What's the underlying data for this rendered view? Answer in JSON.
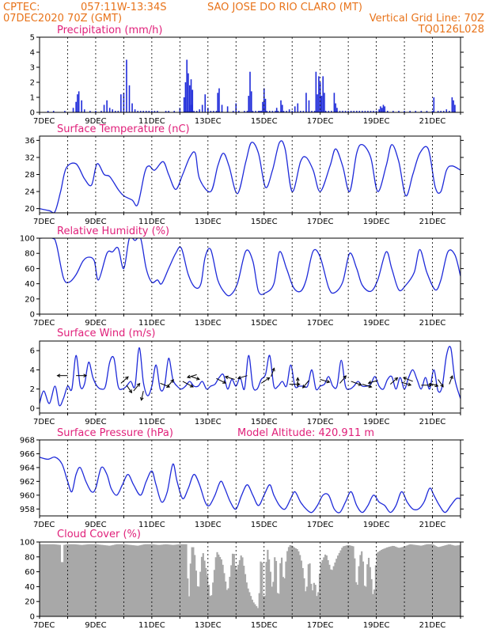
{
  "header": {
    "line1_left": "CPTEC:",
    "line1_coords": "057:11W-13:34S",
    "line1_station": "SAO JOSE DO RIO CLARO (MT)",
    "line2_left": "07DEC2020 70Z (GMT)",
    "line2_right": "Vertical Grid Line: 70Z",
    "line3_right": "TQ0126L028"
  },
  "colors": {
    "header": "#e8731a",
    "title": "#e0207a",
    "line": "#1f2bd9",
    "bar": "#1f2bd9",
    "cloud": "#a8a8a8",
    "vgrid": "#000000"
  },
  "x_ticks": [
    "7DEC",
    "9DEC",
    "11DEC",
    "13DEC",
    "15DEC",
    "17DEC",
    "19DEC",
    "21DEC"
  ],
  "chart_data": [
    {
      "id": "precip",
      "type": "bar",
      "title": "Precipitation (mm/h)",
      "xlim": [
        0,
        15
      ],
      "ylim": [
        0,
        5
      ],
      "yticks": [
        0,
        1,
        2,
        3,
        4,
        5
      ],
      "x": [
        0.3,
        0.5,
        0.9,
        1.2,
        1.3,
        1.35,
        1.4,
        1.5,
        1.6,
        1.8,
        2.0,
        2.2,
        2.3,
        2.4,
        2.5,
        2.6,
        2.7,
        2.8,
        2.9,
        3.0,
        3.1,
        3.2,
        3.3,
        3.4,
        3.5,
        3.6,
        3.7,
        3.8,
        3.9,
        4.0,
        4.1,
        4.2,
        4.5,
        4.6,
        4.8,
        5.0,
        5.2,
        5.3,
        5.4,
        5.5,
        5.6,
        5.7,
        5.8,
        5.9,
        6.0,
        6.1,
        6.2,
        6.3,
        6.4,
        6.5,
        6.7,
        6.9,
        7.1,
        7.3,
        7.4,
        7.6,
        7.7,
        7.8,
        7.85,
        7.9,
        8.0,
        8.1,
        8.2,
        8.3,
        8.4,
        8.5,
        8.6,
        8.7,
        8.8,
        8.9,
        9.0,
        9.1,
        9.2,
        9.3,
        9.4,
        9.5,
        9.6,
        9.7,
        9.8,
        9.9,
        10.0,
        10.1,
        10.2,
        10.3,
        10.4,
        10.5,
        10.6,
        10.7,
        10.8,
        10.9,
        11.0,
        11.1,
        11.2,
        11.3,
        11.4,
        11.5,
        11.6,
        11.7,
        11.8,
        11.9,
        12.0,
        12.1,
        12.2,
        12.3,
        12.4,
        12.6,
        12.8,
        13.0,
        13.2,
        13.4,
        13.6,
        13.8,
        14.0,
        14.2,
        14.3,
        14.4,
        14.6,
        14.8
      ],
      "values": [
        0.1,
        0.1,
        0.1,
        0.3,
        0.7,
        1.2,
        1.4,
        0.8,
        0.2,
        0.1,
        0.1,
        0.1,
        0.5,
        0.8,
        0.3,
        0.2,
        0.1,
        0.1,
        1.2,
        1.3,
        3.5,
        1.8,
        0.6,
        0.2,
        0.1,
        0.1,
        0.1,
        0.1,
        0.1,
        0.1,
        0.1,
        0.1,
        0.1,
        0.1,
        0.1,
        0.1,
        0.1,
        0.1,
        0.5,
        0.1,
        0.1,
        0.2,
        0.5,
        1.2,
        0.3,
        0.1,
        0.1,
        0.1,
        0.1,
        0.1,
        0.1,
        0.1,
        0.1,
        0.1,
        0.1,
        0.1,
        0.1,
        0.1,
        0.1,
        0.1,
        0.1,
        0.1,
        0.1,
        0.1,
        0.1,
        0.1,
        0.1,
        0.1,
        0.1,
        0.1,
        0.1,
        0.1,
        0.1,
        0.1,
        0.1,
        0.1,
        0.1,
        0.1,
        0.1,
        0.1,
        0.1,
        0.1,
        0.1,
        0.1,
        0.1,
        0.1,
        0.1,
        0.1,
        0.1,
        0.1,
        0.1,
        0.1,
        0.1,
        0.1,
        0.1,
        0.1,
        0.1,
        0.1,
        0.1,
        0.1,
        0.1,
        0.1,
        0.1,
        0.1,
        0.1,
        0.1,
        0.1,
        0.1,
        0.1,
        0.1,
        0.1,
        0.1,
        0.1,
        0.1,
        0.1,
        0.1,
        0.1,
        0.1
      ],
      "extra_bars": [
        {
          "x": 5.15,
          "v": 1.0
        },
        {
          "x": 5.0,
          "v": 0.3
        },
        {
          "x": 5.2,
          "v": 2.0
        },
        {
          "x": 5.25,
          "v": 3.5
        },
        {
          "x": 5.3,
          "v": 2.6
        },
        {
          "x": 5.35,
          "v": 1.8
        },
        {
          "x": 5.4,
          "v": 2.2
        },
        {
          "x": 5.45,
          "v": 1.5
        },
        {
          "x": 6.35,
          "v": 1.3
        },
        {
          "x": 6.4,
          "v": 1.6
        },
        {
          "x": 6.5,
          "v": 0.5
        },
        {
          "x": 6.7,
          "v": 0.4
        },
        {
          "x": 7.0,
          "v": 0.6
        },
        {
          "x": 7.45,
          "v": 1.1
        },
        {
          "x": 7.5,
          "v": 2.7
        },
        {
          "x": 7.55,
          "v": 1.4
        },
        {
          "x": 7.95,
          "v": 0.7
        },
        {
          "x": 8.0,
          "v": 1.6
        },
        {
          "x": 8.05,
          "v": 0.9
        },
        {
          "x": 8.45,
          "v": 0.3
        },
        {
          "x": 8.6,
          "v": 0.8
        },
        {
          "x": 8.65,
          "v": 0.5
        },
        {
          "x": 8.9,
          "v": 0.2
        },
        {
          "x": 9.1,
          "v": 0.4
        },
        {
          "x": 9.2,
          "v": 0.6
        },
        {
          "x": 9.5,
          "v": 1.3
        },
        {
          "x": 9.6,
          "v": 0.8
        },
        {
          "x": 9.85,
          "v": 2.7
        },
        {
          "x": 9.9,
          "v": 1.2
        },
        {
          "x": 9.95,
          "v": 2.4
        },
        {
          "x": 10.0,
          "v": 2.0
        },
        {
          "x": 10.05,
          "v": 1.1
        },
        {
          "x": 10.1,
          "v": 2.4
        },
        {
          "x": 10.15,
          "v": 1.3
        },
        {
          "x": 10.5,
          "v": 1.3
        },
        {
          "x": 10.55,
          "v": 0.6
        },
        {
          "x": 10.6,
          "v": 0.3
        },
        {
          "x": 12.1,
          "v": 0.2
        },
        {
          "x": 12.15,
          "v": 0.4
        },
        {
          "x": 12.2,
          "v": 0.3
        },
        {
          "x": 12.25,
          "v": 0.5
        },
        {
          "x": 12.3,
          "v": 0.4
        },
        {
          "x": 14.05,
          "v": 1.0
        },
        {
          "x": 14.5,
          "v": 0.2
        },
        {
          "x": 14.7,
          "v": 1.0
        },
        {
          "x": 14.75,
          "v": 0.8
        },
        {
          "x": 14.8,
          "v": 0.5
        }
      ]
    },
    {
      "id": "temp",
      "type": "line",
      "title": "Surface Temperature (nC)",
      "xlim": [
        0,
        15
      ],
      "ylim": [
        19,
        37
      ],
      "yticks": [
        20,
        24,
        28,
        32,
        36
      ],
      "x": [
        0,
        0.35,
        0.55,
        0.75,
        0.95,
        1.3,
        1.6,
        1.85,
        2.05,
        2.3,
        2.5,
        2.8,
        3.0,
        3.3,
        3.5,
        3.75,
        3.9,
        4.1,
        4.4,
        4.6,
        4.85,
        5.1,
        5.35,
        5.55,
        5.7,
        6.1,
        6.35,
        6.55,
        6.75,
        7.05,
        7.35,
        7.55,
        7.8,
        8.05,
        8.3,
        8.55,
        8.75,
        9.0,
        9.3,
        9.5,
        9.75,
        10.0,
        10.35,
        10.55,
        10.8,
        11.05,
        11.3,
        11.5,
        11.8,
        12.05,
        12.35,
        12.55,
        12.8,
        13.05,
        13.3,
        13.55,
        13.85,
        14.1,
        14.3,
        14.5,
        14.7,
        15.0
      ],
      "values": [
        20,
        19.5,
        19.3,
        24,
        29.5,
        30.5,
        27,
        25.5,
        30.5,
        28,
        27.5,
        24.5,
        23,
        22,
        21,
        28.5,
        30,
        29,
        31,
        28,
        24.5,
        28,
        32,
        33,
        27,
        24,
        30,
        33,
        30,
        23.5,
        31,
        35.5,
        33,
        25,
        29,
        35.5,
        34,
        24,
        31,
        32,
        29,
        24,
        30,
        34,
        30,
        24,
        33,
        35,
        32,
        24,
        30,
        35,
        31,
        23,
        28,
        33,
        34,
        25,
        24,
        29,
        30,
        29
      ]
    },
    {
      "id": "rh",
      "type": "line",
      "title": "Relative Humidity (%)",
      "xlim": [
        0,
        15
      ],
      "ylim": [
        0,
        100
      ],
      "yticks": [
        0,
        20,
        40,
        60,
        80,
        100
      ],
      "x": [
        0,
        0.45,
        0.6,
        0.85,
        1.05,
        1.3,
        1.55,
        1.75,
        1.95,
        2.1,
        2.4,
        2.6,
        2.8,
        3.0,
        3.2,
        3.4,
        3.6,
        3.8,
        4.0,
        4.2,
        4.35,
        4.6,
        4.85,
        5.05,
        5.3,
        5.55,
        5.75,
        5.9,
        6.1,
        6.35,
        6.6,
        6.8,
        7.05,
        7.35,
        7.6,
        7.8,
        8.05,
        8.35,
        8.55,
        8.8,
        9.05,
        9.3,
        9.5,
        9.75,
        10.0,
        10.3,
        10.5,
        10.8,
        11.05,
        11.3,
        11.5,
        11.8,
        12.05,
        12.35,
        12.55,
        12.8,
        13.05,
        13.35,
        13.55,
        13.8,
        14.1,
        14.3,
        14.55,
        14.8,
        15.0
      ],
      "values": [
        100,
        100,
        92,
        48,
        42,
        52,
        70,
        75,
        70,
        45,
        80,
        82,
        87,
        60,
        100,
        97,
        100,
        60,
        42,
        45,
        40,
        60,
        80,
        87,
        52,
        35,
        40,
        75,
        85,
        45,
        28,
        25,
        40,
        83,
        70,
        30,
        28,
        40,
        82,
        60,
        35,
        30,
        45,
        83,
        75,
        35,
        28,
        42,
        80,
        60,
        38,
        30,
        45,
        82,
        60,
        32,
        38,
        55,
        85,
        55,
        32,
        45,
        82,
        78,
        50
      ]
    },
    {
      "id": "wind",
      "type": "line",
      "title": "Surface Wind (m/s)",
      "xlim": [
        0,
        15
      ],
      "ylim": [
        -0.5,
        7
      ],
      "yticks": [
        0,
        2,
        4,
        6
      ],
      "x": [
        0,
        0.15,
        0.35,
        0.55,
        0.7,
        0.85,
        1.0,
        1.15,
        1.3,
        1.45,
        1.6,
        1.75,
        1.9,
        2.05,
        2.2,
        2.35,
        2.5,
        2.65,
        2.8,
        2.95,
        3.1,
        3.25,
        3.4,
        3.55,
        3.7,
        3.85,
        4.0,
        4.15,
        4.3,
        4.45,
        4.6,
        4.75,
        4.9,
        5.05,
        5.2,
        5.35,
        5.5,
        5.65,
        5.8,
        5.95,
        6.1,
        6.25,
        6.4,
        6.55,
        6.7,
        6.85,
        7.0,
        7.15,
        7.3,
        7.45,
        7.6,
        7.75,
        7.9,
        8.05,
        8.2,
        8.35,
        8.5,
        8.65,
        8.8,
        8.95,
        9.1,
        9.25,
        9.4,
        9.55,
        9.7,
        9.85,
        10.0,
        10.15,
        10.3,
        10.45,
        10.6,
        10.75,
        10.9,
        11.05,
        11.2,
        11.35,
        11.5,
        11.65,
        11.8,
        11.95,
        12.1,
        12.25,
        12.4,
        12.55,
        12.7,
        12.85,
        13.0,
        13.15,
        13.3,
        13.45,
        13.6,
        13.75,
        13.9,
        14.05,
        14.2,
        14.35,
        14.5,
        14.65,
        14.8,
        15.0
      ],
      "values": [
        0.5,
        1.8,
        0.5,
        2.3,
        0.3,
        1.0,
        2.3,
        2.0,
        5.5,
        2.3,
        2.5,
        4.8,
        3.2,
        2.3,
        2.0,
        2.3,
        4.8,
        5.2,
        2.3,
        2.0,
        2.3,
        2.8,
        2.3,
        6.3,
        2.7,
        1.3,
        2.3,
        4.5,
        2.0,
        2.3,
        5.2,
        3.0,
        2.3,
        2.0,
        2.3,
        2.8,
        2.3,
        2.3,
        2.8,
        2.0,
        2.3,
        2.5,
        3.2,
        3.5,
        2.0,
        3.0,
        2.3,
        3.2,
        2.0,
        5.5,
        2.3,
        2.0,
        3.0,
        3.5,
        5.5,
        2.3,
        2.3,
        2.8,
        2.3,
        4.5,
        2.3,
        2.3,
        2.3,
        2.3,
        4.0,
        2.0,
        2.3,
        2.5,
        3.3,
        2.3,
        2.3,
        5.0,
        2.3,
        2.0,
        2.3,
        2.8,
        2.3,
        2.3,
        2.5,
        3.3,
        2.3,
        2.0,
        3.0,
        3.3,
        2.0,
        3.2,
        2.0,
        3.2,
        4.0,
        3.0,
        2.0,
        3.2,
        2.0,
        4.0,
        1.8,
        2.3,
        5.5,
        6.3,
        3.0,
        1.0
      ]
    },
    {
      "id": "pres",
      "type": "line",
      "title": "Surface Pressure (hPa)",
      "annotation": "Model Altitude: 420.911 m",
      "xlim": [
        0,
        15
      ],
      "ylim": [
        957,
        968
      ],
      "yticks": [
        958,
        960,
        962,
        964,
        966,
        968
      ],
      "x": [
        0,
        0.3,
        0.55,
        0.8,
        1.0,
        1.15,
        1.3,
        1.45,
        1.65,
        1.85,
        2.0,
        2.2,
        2.4,
        2.55,
        2.75,
        2.95,
        3.15,
        3.35,
        3.6,
        3.8,
        4.0,
        4.15,
        4.35,
        4.55,
        4.75,
        4.9,
        5.1,
        5.3,
        5.5,
        5.7,
        5.9,
        6.05,
        6.25,
        6.45,
        6.6,
        6.8,
        7.0,
        7.2,
        7.4,
        7.6,
        7.8,
        8.0,
        8.2,
        8.35,
        8.55,
        8.75,
        8.95,
        9.1,
        9.3,
        9.5,
        9.7,
        9.9,
        10.1,
        10.3,
        10.5,
        10.7,
        10.9,
        11.1,
        11.3,
        11.5,
        11.7,
        11.9,
        12.1,
        12.3,
        12.5,
        12.7,
        12.9,
        13.1,
        13.3,
        13.5,
        13.7,
        13.9,
        14.05,
        14.25,
        14.45,
        14.65,
        14.85,
        15.0
      ],
      "values": [
        965.5,
        965.2,
        965.5,
        964.5,
        962,
        960.5,
        963,
        964,
        962,
        960.5,
        961,
        964,
        963,
        961,
        960,
        961.5,
        963,
        961.5,
        960,
        962,
        963.5,
        961.5,
        959,
        960.5,
        964.5,
        962,
        959.5,
        961,
        963,
        961.5,
        959,
        958.5,
        960,
        962,
        961,
        959,
        958,
        960,
        961.5,
        960,
        958.5,
        960,
        961.5,
        960,
        958.5,
        958,
        959.5,
        960.5,
        959,
        958,
        957.5,
        958.5,
        960,
        960,
        958,
        957.5,
        959,
        960.5,
        958.5,
        957.5,
        958.5,
        960,
        959,
        958.5,
        957.5,
        958.5,
        960.5,
        959,
        958,
        958,
        959,
        961,
        960,
        958.5,
        957.5,
        958.5,
        959.5,
        959.5
      ]
    },
    {
      "id": "cloud",
      "type": "area",
      "title": "Cloud Cover (%)",
      "xlim": [
        0,
        15
      ],
      "ylim": [
        0,
        100
      ],
      "yticks": [
        0,
        20,
        40,
        60,
        80,
        100
      ],
      "x": [
        0,
        0.25,
        0.5,
        0.75,
        0.8,
        0.85,
        1.0,
        1.25,
        1.5,
        1.75,
        2.0,
        2.25,
        2.5,
        2.75,
        3.0,
        3.25,
        3.5,
        3.75,
        4.0,
        4.25,
        4.5,
        4.75,
        5.0,
        5.25,
        5.3,
        5.4,
        5.5,
        5.65,
        5.8,
        6.0,
        6.1,
        6.3,
        6.5,
        6.7,
        6.9,
        7.0,
        7.2,
        7.4,
        7.6,
        7.8,
        7.9,
        8.0,
        8.1,
        8.2,
        8.3,
        8.4,
        8.5,
        8.6,
        8.7,
        8.8,
        8.9,
        9.0,
        9.1,
        9.2,
        9.3,
        9.4,
        9.5,
        9.6,
        9.7,
        9.8,
        9.9,
        10.0,
        10.2,
        10.4,
        10.6,
        10.8,
        11.0,
        11.2,
        11.3,
        11.4,
        11.5,
        11.6,
        11.7,
        11.8,
        11.9,
        12.0,
        12.2,
        12.4,
        12.6,
        12.8,
        13.0,
        13.2,
        13.4,
        13.6,
        13.8,
        14.0,
        14.2,
        14.4,
        14.6,
        14.8,
        15.0
      ],
      "values": [
        97,
        97,
        97,
        96,
        50,
        96,
        97,
        97,
        96,
        97,
        97,
        96,
        95,
        97,
        97,
        96,
        95,
        97,
        97,
        96,
        97,
        96,
        97,
        97,
        5,
        93,
        93,
        30,
        90,
        50,
        20,
        88,
        75,
        30,
        92,
        60,
        85,
        40,
        20,
        10,
        95,
        5,
        96,
        70,
        30,
        96,
        10,
        92,
        40,
        85,
        96,
        95,
        92,
        90,
        80,
        60,
        25,
        85,
        30,
        50,
        20,
        70,
        85,
        60,
        80,
        94,
        96,
        94,
        30,
        80,
        90,
        25,
        85,
        60,
        20,
        85,
        90,
        93,
        95,
        92,
        94,
        97,
        96,
        95,
        97,
        97,
        93,
        95,
        97,
        95,
        96
      ]
    }
  ]
}
